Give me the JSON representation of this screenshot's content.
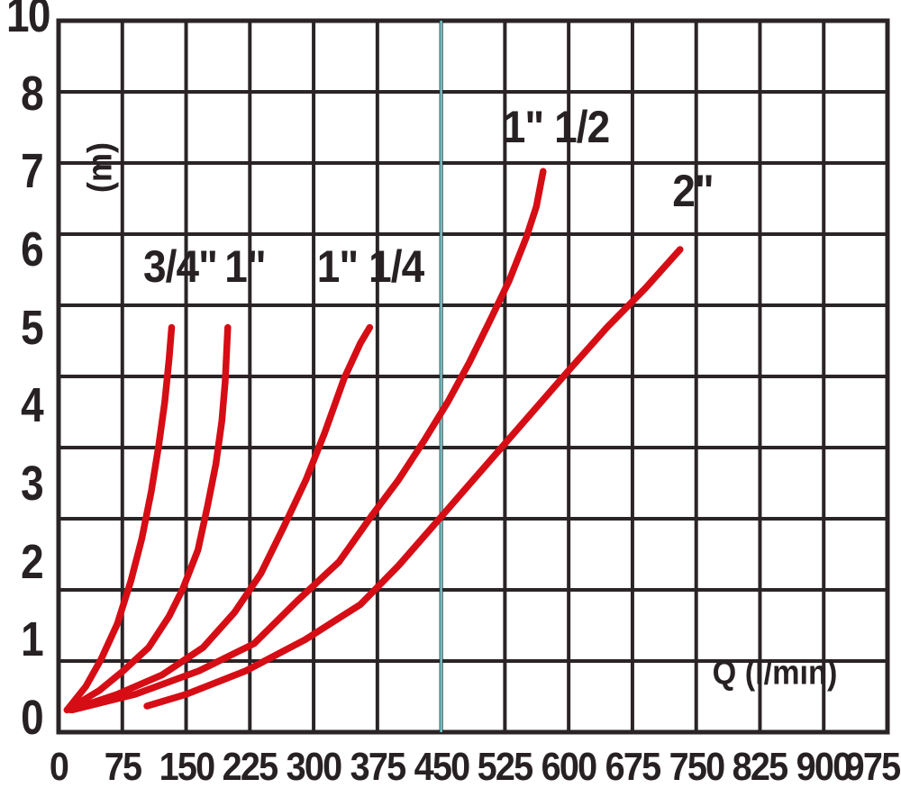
{
  "chart_data": {
    "type": "line",
    "title": "",
    "xlabel": "Q (l/min)",
    "ylabel": "(m)",
    "xlim": [
      0,
      975
    ],
    "ylim": [
      0,
      10
    ],
    "grid": true,
    "legend_position": "labels-on-curves",
    "x_tick_labels": [
      "0",
      "75",
      "150",
      "225",
      "300",
      "375",
      "450",
      "525",
      "600",
      "675",
      "750",
      "825",
      "900",
      "975"
    ],
    "y_tick_labels": [
      "10",
      "8",
      "7",
      "6",
      "5",
      "4",
      "3",
      "2",
      "1",
      "0"
    ],
    "reference_line": {
      "axis": "x",
      "value": 450
    },
    "series": [
      {
        "name": "3/4\"",
        "points": [
          [
            10,
            0.1
          ],
          [
            32,
            0.4
          ],
          [
            50,
            0.75
          ],
          [
            69,
            1.2
          ],
          [
            85,
            1.75
          ],
          [
            98,
            2.3
          ],
          [
            109,
            2.9
          ],
          [
            118,
            3.5
          ],
          [
            125,
            4.05
          ],
          [
            130,
            4.6
          ],
          [
            133,
            5.0
          ]
        ]
      },
      {
        "name": "1\"",
        "points": [
          [
            10,
            0.1
          ],
          [
            48,
            0.35
          ],
          [
            76,
            0.6
          ],
          [
            106,
            0.9
          ],
          [
            130,
            1.3
          ],
          [
            146,
            1.65
          ],
          [
            164,
            2.15
          ],
          [
            175,
            2.7
          ],
          [
            185,
            3.25
          ],
          [
            192,
            3.8
          ],
          [
            196,
            4.3
          ],
          [
            199,
            5.0
          ]
        ]
      },
      {
        "name": "1\" 1/4",
        "points": [
          [
            14,
            0.1
          ],
          [
            69,
            0.3
          ],
          [
            122,
            0.55
          ],
          [
            170,
            0.9
          ],
          [
            207,
            1.35
          ],
          [
            238,
            1.85
          ],
          [
            265,
            2.45
          ],
          [
            291,
            3.05
          ],
          [
            313,
            3.65
          ],
          [
            336,
            4.35
          ],
          [
            355,
            4.8
          ],
          [
            366,
            5.0
          ]
        ]
      },
      {
        "name": "1\" 1/2",
        "points": [
          [
            16,
            0.1
          ],
          [
            90,
            0.3
          ],
          [
            165,
            0.6
          ],
          [
            230,
            0.95
          ],
          [
            281,
            1.5
          ],
          [
            330,
            2.0
          ],
          [
            369,
            2.6
          ],
          [
            400,
            3.05
          ],
          [
            430,
            3.55
          ],
          [
            458,
            4.05
          ],
          [
            483,
            4.55
          ],
          [
            508,
            5.1
          ],
          [
            530,
            5.6
          ],
          [
            550,
            6.15
          ],
          [
            562,
            6.55
          ],
          [
            570,
            7.0
          ]
        ]
      },
      {
        "name": "2\"",
        "points": [
          [
            104,
            0.15
          ],
          [
            150,
            0.3
          ],
          [
            220,
            0.6
          ],
          [
            290,
            1.0
          ],
          [
            355,
            1.45
          ],
          [
            400,
            1.95
          ],
          [
            440,
            2.45
          ],
          [
            480,
            2.95
          ],
          [
            520,
            3.45
          ],
          [
            560,
            3.95
          ],
          [
            600,
            4.45
          ],
          [
            645,
            5.0
          ],
          [
            690,
            5.5
          ],
          [
            731,
            6.0
          ]
        ]
      }
    ]
  },
  "colors": {
    "background": "#ffffff",
    "grid": "#2b2426",
    "text": "#272123",
    "curve": "#d60d15",
    "reference_line": "#6fc9c9"
  }
}
